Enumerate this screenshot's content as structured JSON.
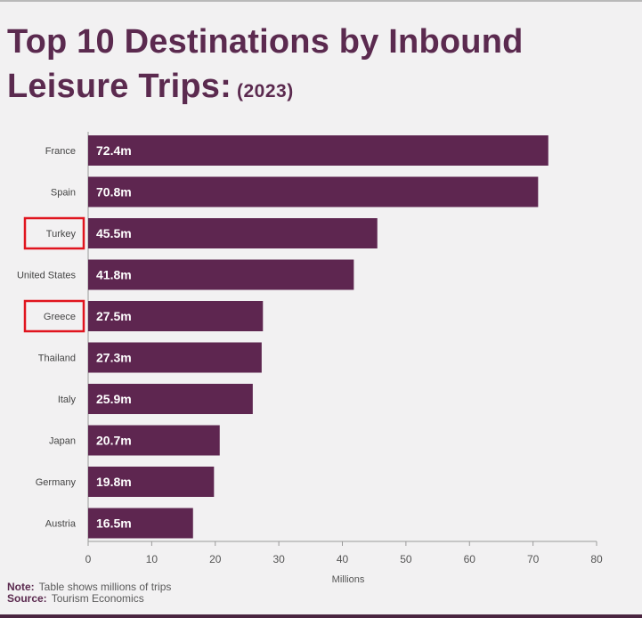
{
  "title": {
    "line1": "Top 10 Destinations by Inbound",
    "line2": "Leisure Trips:",
    "year": "(2023)"
  },
  "colors": {
    "bar": "#5e2650",
    "title": "#5b2a4f",
    "highlight_box": "#e0141e"
  },
  "chart_data": {
    "type": "bar",
    "orientation": "horizontal",
    "categories": [
      "France",
      "Spain",
      "Turkey",
      "United States",
      "Greece",
      "Thailand",
      "Italy",
      "Japan",
      "Germany",
      "Austria"
    ],
    "values": [
      72.4,
      70.8,
      45.5,
      41.8,
      27.5,
      27.3,
      25.9,
      20.7,
      19.8,
      16.5
    ],
    "data_labels": [
      "72.4m",
      "70.8m",
      "45.5m",
      "41.8m",
      "27.5m",
      "27.3m",
      "25.9m",
      "20.7m",
      "19.8m",
      "16.5m"
    ],
    "highlighted_categories": [
      "Turkey",
      "Greece"
    ],
    "xlabel": "Millions",
    "xlim": [
      0,
      80
    ],
    "xticks": [
      0,
      10,
      20,
      30,
      40,
      50,
      60,
      70,
      80
    ],
    "grid": false,
    "legend": "none"
  },
  "footer": {
    "note_label": "Note:",
    "note_text": "Table shows millions of trips",
    "source_label": "Source:",
    "source_text": "Tourism Economics"
  }
}
